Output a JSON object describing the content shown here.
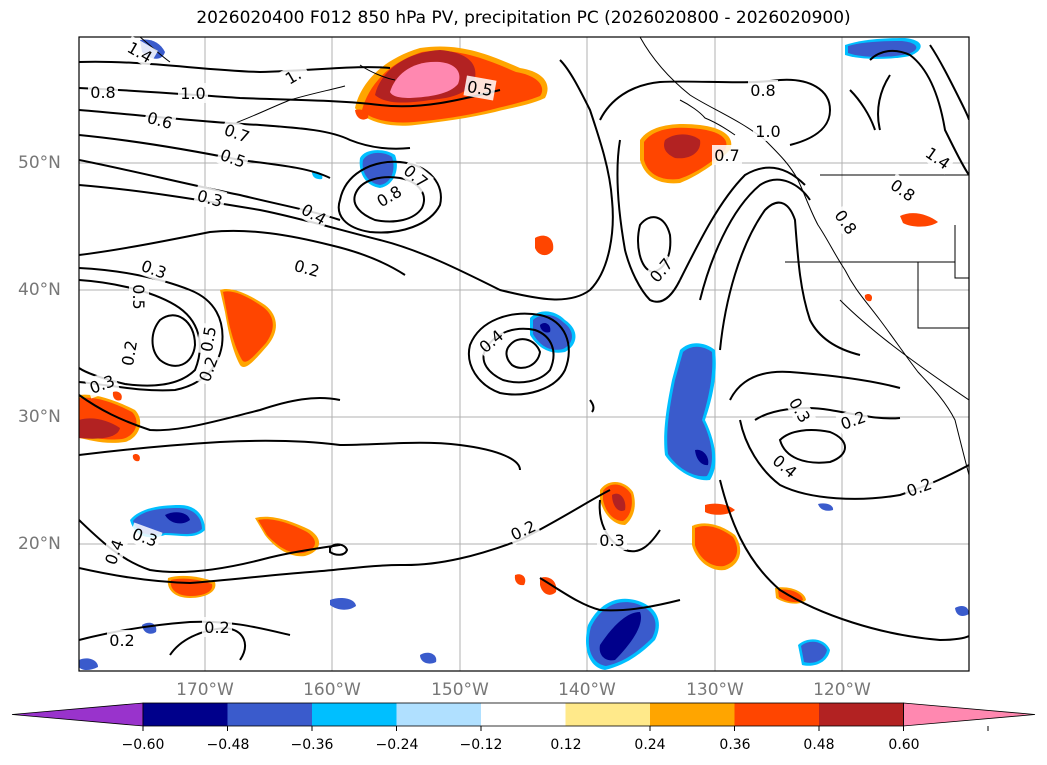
{
  "title": "2026020400 F012 850 hPa PV, precipitation PC (2026020800 - 2026020900)",
  "lat_labels": [
    "50°N",
    "40°N",
    "30°N",
    "20°N"
  ],
  "lon_labels": [
    "170°W",
    "160°W",
    "150°W",
    "140°W",
    "130°W",
    "120°W"
  ],
  "colorbar": {
    "ticks": [
      "−0.60",
      "−0.48",
      "−0.36",
      "−0.24",
      "−0.12",
      "0.12",
      "0.24",
      "0.36",
      "0.48",
      "0.60"
    ],
    "colors": [
      "#9933cc",
      "#00008b",
      "#3a5bcc",
      "#00bfff",
      "#b0e0ff",
      "#ffffff",
      "#ffe98a",
      "#ffa500",
      "#ff4500",
      "#b22222",
      "#ff88b0"
    ]
  },
  "contour_labels": [
    "1.4",
    "0.8",
    "1.0",
    "1.",
    "0.6",
    "0.7",
    "0.5",
    "0.3",
    "0.4",
    "0.2",
    "0.7",
    "0.8",
    "0.5",
    "0.8",
    "1.0",
    "0.7",
    "1.4",
    "0.8",
    "0.8",
    "0.7",
    "0.3",
    "0.5",
    "0.5",
    "0.2",
    "0.2",
    "0.3",
    "0.4",
    "0.3",
    "0.2",
    "0.4",
    "0.2",
    "0.3",
    "0.4",
    "0.2",
    "0.2",
    "0.3",
    "0.2"
  ]
}
